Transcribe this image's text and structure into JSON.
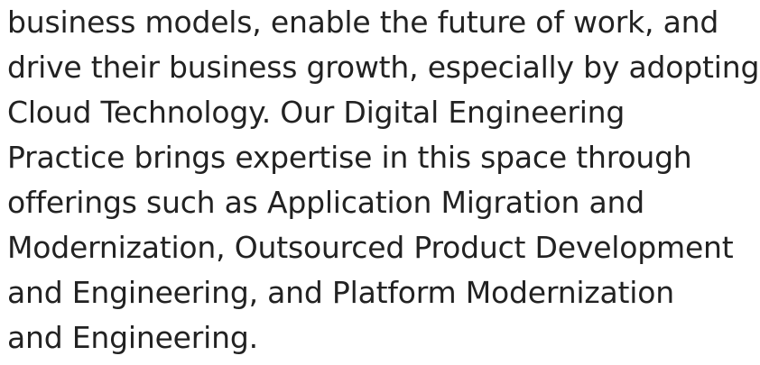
{
  "paragraph": {
    "lines": [
      "business models, enable the future of work, and",
      "drive their business growth, especially by adopting",
      "Cloud Technology. Our Digital Engineering",
      "Practice brings expertise in this space through",
      "offerings such as Application Migration and",
      "Modernization, Outsourced Product Development",
      "and Engineering, and Platform Modernization",
      "and Engineering."
    ]
  }
}
